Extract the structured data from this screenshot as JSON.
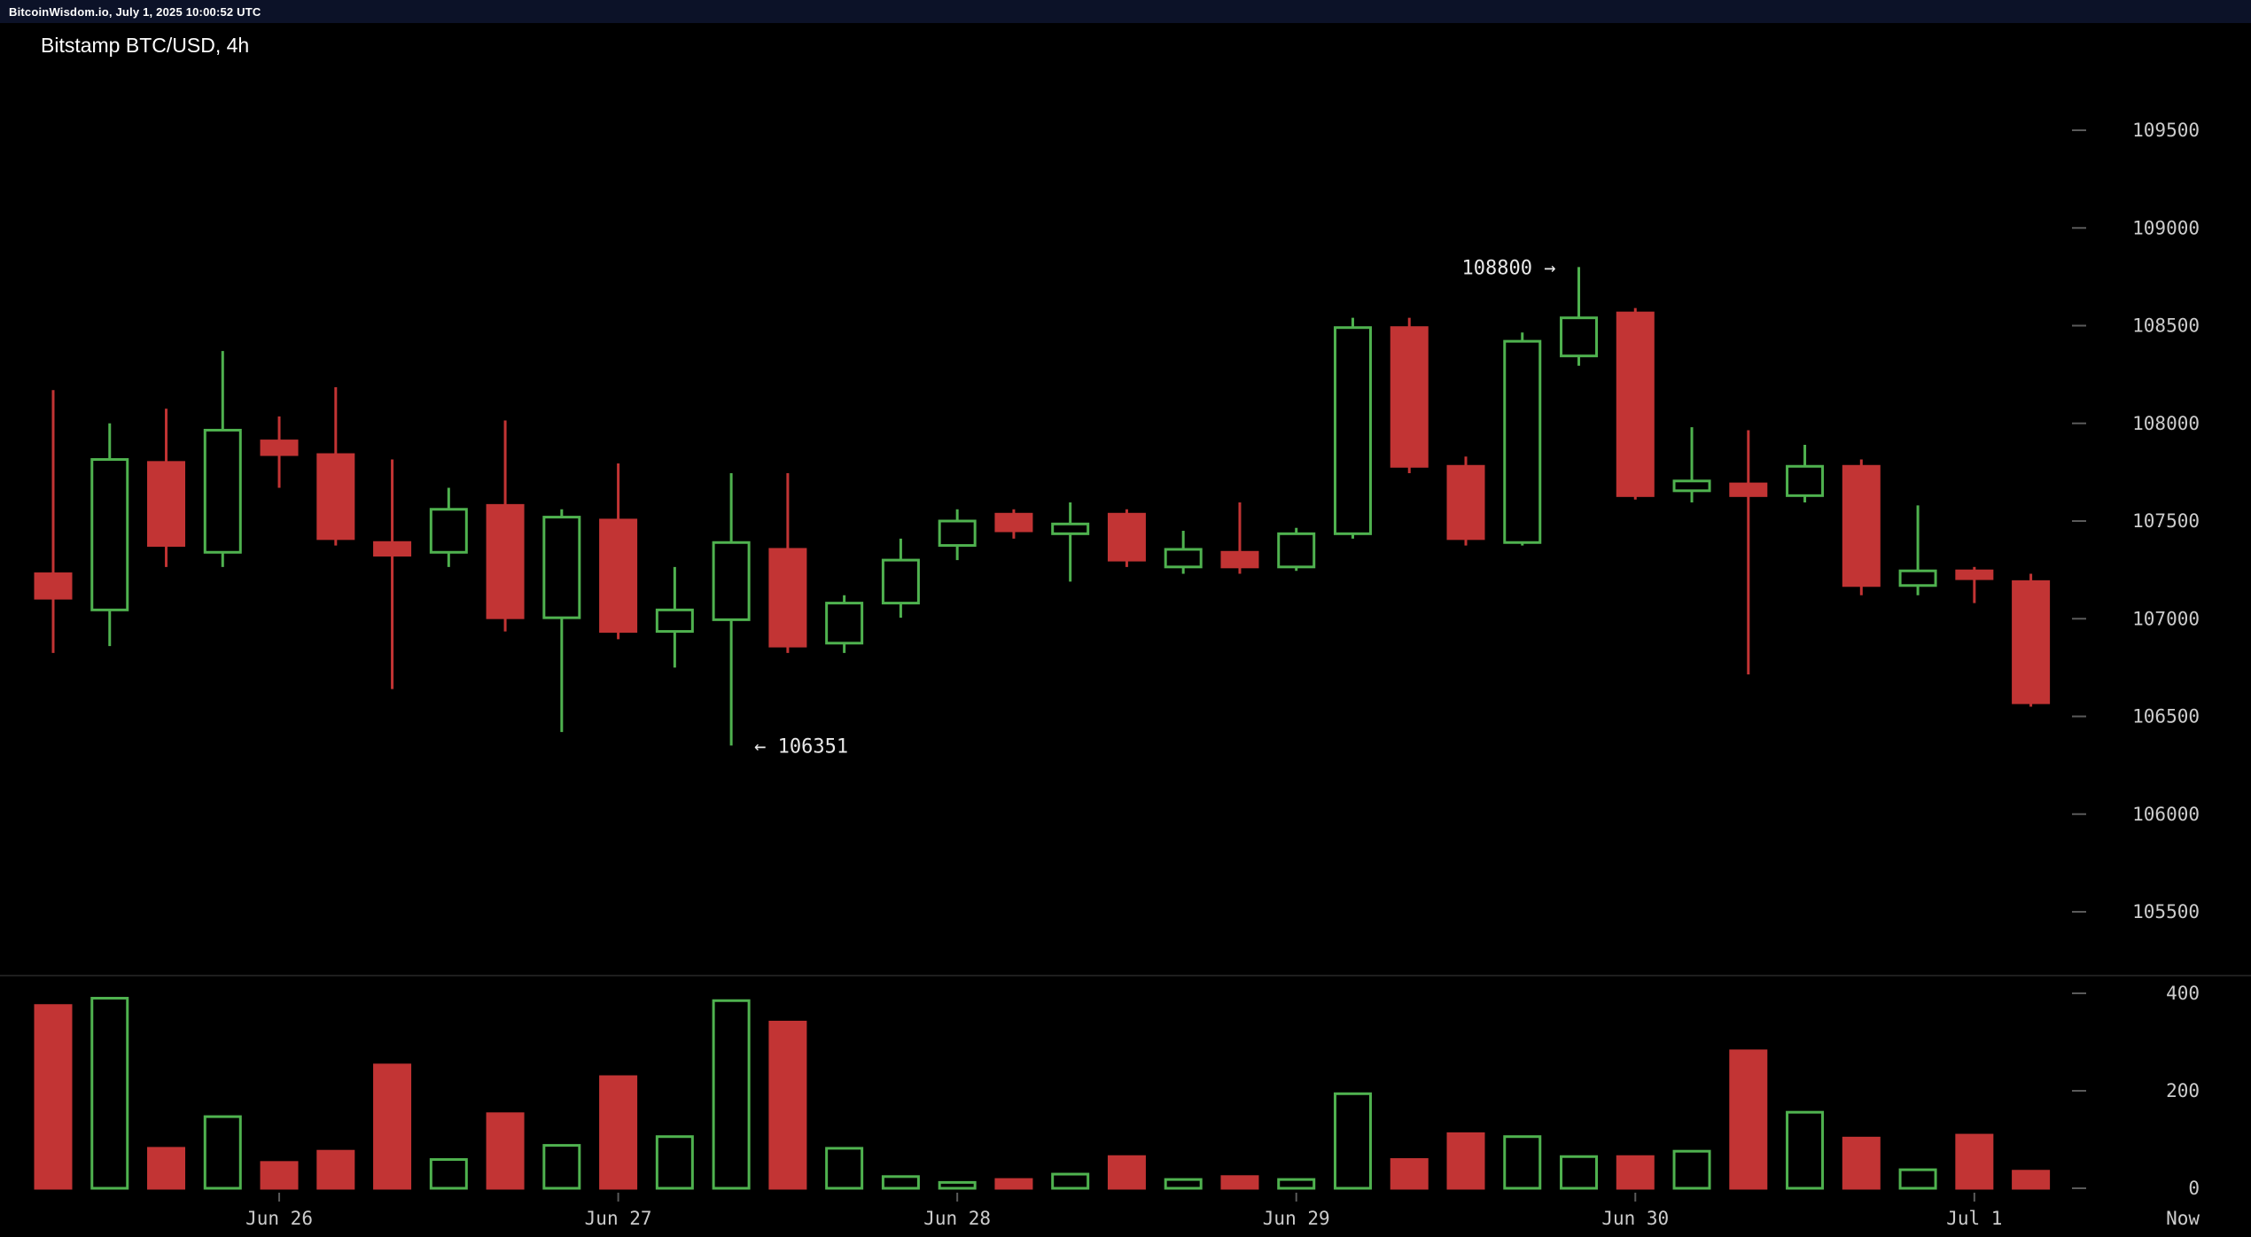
{
  "topbar": {
    "text": "BitcoinWisdom.io, July 1, 2025 10:00:52 UTC"
  },
  "chart": {
    "title": "Bitstamp BTC/USD, 4h"
  },
  "colors": {
    "background": "#000000",
    "topbar_bg": "#0c1228",
    "up": "#4fb24f",
    "down": "#c23434",
    "axis_text": "#cccccc",
    "tick": "#5a5a5a",
    "separator": "#1e1e1e",
    "annotation": "#e8e8e8"
  },
  "chart_data": {
    "type": "candlestick",
    "exchange": "Bitstamp",
    "pair": "BTC/USD",
    "interval": "4h",
    "title": "Bitstamp BTC/USD, 4h",
    "price_axis_ticks": [
      109500,
      109000,
      108500,
      108000,
      107500,
      107000,
      106500,
      106000,
      105500
    ],
    "volume_axis_ticks": [
      400,
      200,
      0
    ],
    "now_label": "Now",
    "date_labels": [
      {
        "label": "Jun 26",
        "candle_index": 4
      },
      {
        "label": "Jun 27",
        "candle_index": 10
      },
      {
        "label": "Jun 28",
        "candle_index": 16
      },
      {
        "label": "Jun 29",
        "candle_index": 22
      },
      {
        "label": "Jun 30",
        "candle_index": 28
      },
      {
        "label": "Jul 1",
        "candle_index": 34
      }
    ],
    "annotations": [
      {
        "text": "108800 →",
        "candle_index": 27,
        "price": 108800,
        "side": "left-of-candle"
      },
      {
        "text": "← 106351",
        "candle_index": 12,
        "price": 106351,
        "side": "right-of-candle"
      }
    ],
    "candle_fields": [
      "open",
      "high",
      "low",
      "close",
      "volume"
    ],
    "candles": [
      [
        107230,
        108170,
        106825,
        107105,
        375
      ],
      [
        107045,
        108000,
        106860,
        107815,
        390
      ],
      [
        107800,
        108075,
        107265,
        107375,
        82
      ],
      [
        107340,
        108370,
        107265,
        107965,
        147
      ],
      [
        107910,
        108035,
        107670,
        107840,
        53
      ],
      [
        107840,
        108185,
        107375,
        107410,
        76
      ],
      [
        107390,
        107815,
        106640,
        107325,
        253
      ],
      [
        107340,
        107670,
        107265,
        107560,
        59
      ],
      [
        107580,
        108015,
        106935,
        107005,
        153
      ],
      [
        107005,
        107560,
        106420,
        107520,
        88
      ],
      [
        107505,
        107795,
        106895,
        106935,
        229
      ],
      [
        106935,
        107265,
        106750,
        107045,
        106
      ],
      [
        106995,
        107745,
        106351,
        107390,
        385
      ],
      [
        107355,
        107745,
        106825,
        106860,
        341
      ],
      [
        106875,
        107120,
        106825,
        107080,
        82
      ],
      [
        107080,
        107410,
        107005,
        107300,
        24
      ],
      [
        107375,
        107560,
        107300,
        107500,
        12
      ],
      [
        107535,
        107560,
        107410,
        107450,
        18
      ],
      [
        107435,
        107595,
        107190,
        107485,
        29
      ],
      [
        107535,
        107560,
        107265,
        107300,
        65
      ],
      [
        107265,
        107450,
        107230,
        107355,
        18
      ],
      [
        107340,
        107595,
        107230,
        107265,
        24
      ],
      [
        107265,
        107465,
        107245,
        107435,
        18
      ],
      [
        107435,
        108540,
        107410,
        108490,
        194
      ],
      [
        108490,
        108540,
        107745,
        107780,
        59
      ],
      [
        107780,
        107830,
        107375,
        107410,
        112
      ],
      [
        107390,
        108465,
        107375,
        108420,
        106
      ],
      [
        108345,
        108800,
        108295,
        108540,
        65
      ],
      [
        108565,
        108590,
        107610,
        107630,
        65
      ],
      [
        107655,
        107980,
        107595,
        107705,
        76
      ],
      [
        107690,
        107965,
        106715,
        107630,
        282
      ],
      [
        107630,
        107890,
        107595,
        107780,
        156
      ],
      [
        107780,
        107815,
        107120,
        107170,
        103
      ],
      [
        107170,
        107580,
        107120,
        107245,
        38
      ],
      [
        107245,
        107265,
        107080,
        107205,
        109
      ],
      [
        107190,
        107230,
        106550,
        106570,
        35
      ]
    ]
  }
}
